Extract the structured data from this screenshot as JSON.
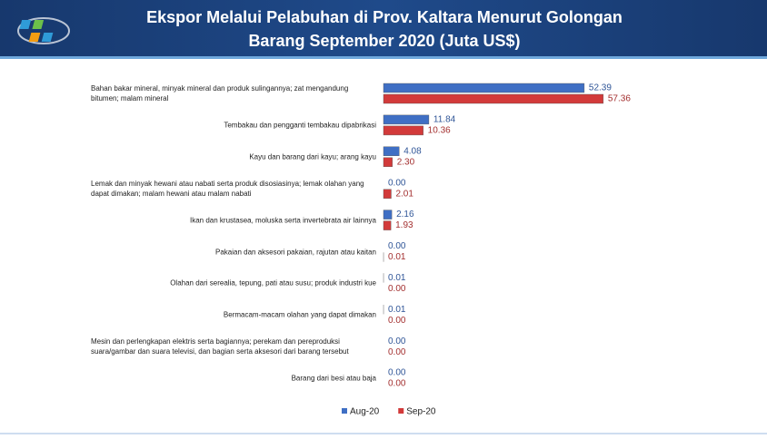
{
  "chart_data": {
    "type": "bar",
    "orientation": "horizontal",
    "title": "Ekspor Melalui Pelabuhan di Prov. Kaltara Menurut Golongan Barang September 2020 (Juta US$)",
    "categories": [
      "Bahan bakar mineral, minyak mineral dan produk sulingannya; zat mengandung bitumen; malam mineral",
      "Tembakau dan pengganti tembakau dipabrikasi",
      "Kayu dan barang dari kayu; arang kayu",
      "Lemak dan minyak hewani atau nabati serta produk disosiasinya; lemak olahan yang dapat dimakan; malam hewani atau malam nabati",
      "Ikan dan krustasea, moluska serta invertebrata air lainnya",
      "Pakaian dan aksesori pakaian, rajutan atau kaitan",
      "Olahan dari serealia, tepung, pati atau susu; produk industri kue",
      "Bermacam-macam olahan yang dapat dimakan",
      "Mesin dan perlengkapan elektris serta bagiannya; perekam dan pereproduksi suara/gambar dan suara televisi, dan bagian serta aksesori dari barang tersebut",
      "Barang dari besi atau baja"
    ],
    "series": [
      {
        "name": "Aug-20",
        "color": "#3f6fc4",
        "text_color": "#2f5597",
        "values": [
          52.39,
          11.84,
          4.08,
          0,
          2.16,
          0,
          0.01,
          0.01,
          0,
          0
        ],
        "value_labels": [
          "52.39",
          "11.84",
          "4.08",
          "0.00",
          "2.16",
          "0.00",
          "0.01",
          "0.01",
          "0.00",
          "0.00"
        ]
      },
      {
        "name": "Sep-20",
        "color": "#d23a3a",
        "text_color": "#a32f2f",
        "values": [
          57.36,
          10.36,
          2.3,
          2.01,
          1.93,
          0.01,
          0,
          0,
          0,
          0
        ],
        "value_labels": [
          "57.36",
          "10.36",
          "2.30",
          "2.01",
          "1.93",
          "0.01",
          "0.00",
          "0.00",
          "0.00",
          "0.00"
        ]
      }
    ],
    "xlim": [
      0,
      60
    ]
  }
}
